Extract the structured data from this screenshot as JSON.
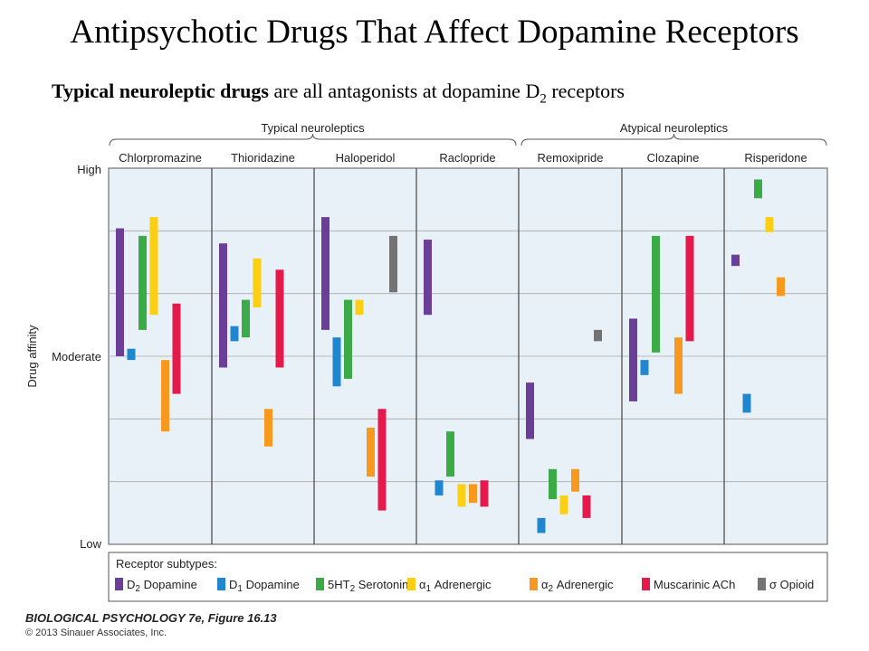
{
  "slide": {
    "title": "Antipsychotic Drugs That Affect Dopamine Receptors",
    "subtitle_bold": "Typical neuroleptic drugs",
    "subtitle_text": " are all antagonists at dopamine D",
    "subtitle_sub": "2",
    "subtitle_end": " receptors",
    "caption": "BIOLOGICAL PSYCHOLOGY 7e, Figure 16.13",
    "copyright": "© 2013 Sinauer Associates, Inc."
  },
  "chart_data": {
    "type": "range-bar",
    "ylabel": "Drug affinity",
    "y_ticks": [
      "High",
      "Moderate",
      "Low"
    ],
    "ylim": [
      0,
      1
    ],
    "groups": [
      {
        "label": "Typical neuroleptics",
        "drugs": [
          "Chlorpromazine",
          "Thioridazine",
          "Haloperidol",
          "Raclopride"
        ]
      },
      {
        "label": "Atypical neuroleptics",
        "drugs": [
          "Remoxipride",
          "Clozapine",
          "Risperidone"
        ]
      }
    ],
    "legend_title": "Receptor subtypes:",
    "receptors": [
      {
        "key": "D2",
        "pre": "D",
        "sub": "2",
        "post": " Dopamine",
        "color": "#6b3f97"
      },
      {
        "key": "D1",
        "pre": "D",
        "sub": "1",
        "post": " Dopamine",
        "color": "#1f86d0"
      },
      {
        "key": "5HT2",
        "pre": "5HT",
        "sub": "2",
        "post": " Serotonin",
        "color": "#3bab48"
      },
      {
        "key": "a1",
        "pre": "α",
        "sub": "1",
        "post": " Adrenergic",
        "color": "#fccf12"
      },
      {
        "key": "a2",
        "pre": "α",
        "sub": "2",
        "post": " Adrenergic",
        "color": "#f7991f"
      },
      {
        "key": "mACh",
        "pre": "Muscarinic ACh",
        "sub": "",
        "post": "",
        "color": "#e41a4c"
      },
      {
        "key": "sigma",
        "pre": "σ Opioid",
        "sub": "",
        "post": "",
        "color": "#737373"
      }
    ],
    "drugs": [
      {
        "name": "Chlorpromazine",
        "bars": [
          {
            "r": "D2",
            "lo": 0.5,
            "hi": 0.84
          },
          {
            "r": "D1",
            "lo": 0.49,
            "hi": 0.52
          },
          {
            "r": "5HT2",
            "lo": 0.57,
            "hi": 0.82
          },
          {
            "r": "a1",
            "lo": 0.61,
            "hi": 0.87
          },
          {
            "r": "a2",
            "lo": 0.3,
            "hi": 0.49
          },
          {
            "r": "mACh",
            "lo": 0.4,
            "hi": 0.64
          }
        ]
      },
      {
        "name": "Thioridazine",
        "bars": [
          {
            "r": "D2",
            "lo": 0.47,
            "hi": 0.8
          },
          {
            "r": "D1",
            "lo": 0.54,
            "hi": 0.58
          },
          {
            "r": "5HT2",
            "lo": 0.55,
            "hi": 0.65
          },
          {
            "r": "a1",
            "lo": 0.63,
            "hi": 0.76
          },
          {
            "r": "a2",
            "lo": 0.26,
            "hi": 0.36
          },
          {
            "r": "mACh",
            "lo": 0.47,
            "hi": 0.73
          }
        ]
      },
      {
        "name": "Haloperidol",
        "bars": [
          {
            "r": "D2",
            "lo": 0.57,
            "hi": 0.87
          },
          {
            "r": "D1",
            "lo": 0.42,
            "hi": 0.55
          },
          {
            "r": "5HT2",
            "lo": 0.44,
            "hi": 0.65
          },
          {
            "r": "a1",
            "lo": 0.61,
            "hi": 0.65
          },
          {
            "r": "a2",
            "lo": 0.18,
            "hi": 0.31
          },
          {
            "r": "mACh",
            "lo": 0.09,
            "hi": 0.36
          },
          {
            "r": "sigma",
            "lo": 0.67,
            "hi": 0.82
          }
        ]
      },
      {
        "name": "Raclopride",
        "bars": [
          {
            "r": "D2",
            "lo": 0.61,
            "hi": 0.81
          },
          {
            "r": "D1",
            "lo": 0.13,
            "hi": 0.17
          },
          {
            "r": "5HT2",
            "lo": 0.18,
            "hi": 0.3
          },
          {
            "r": "a1",
            "lo": 0.1,
            "hi": 0.16
          },
          {
            "r": "a2",
            "lo": 0.11,
            "hi": 0.16
          },
          {
            "r": "mACh",
            "lo": 0.1,
            "hi": 0.17
          }
        ]
      },
      {
        "name": "Remoxipride",
        "bars": [
          {
            "r": "D2",
            "lo": 0.28,
            "hi": 0.43
          },
          {
            "r": "D1",
            "lo": 0.03,
            "hi": 0.07
          },
          {
            "r": "5HT2",
            "lo": 0.12,
            "hi": 0.2
          },
          {
            "r": "a1",
            "lo": 0.08,
            "hi": 0.13
          },
          {
            "r": "a2",
            "lo": 0.14,
            "hi": 0.2
          },
          {
            "r": "mACh",
            "lo": 0.07,
            "hi": 0.13
          },
          {
            "r": "sigma",
            "lo": 0.54,
            "hi": 0.57
          }
        ]
      },
      {
        "name": "Clozapine",
        "bars": [
          {
            "r": "D2",
            "lo": 0.38,
            "hi": 0.6
          },
          {
            "r": "D1",
            "lo": 0.45,
            "hi": 0.49
          },
          {
            "r": "5HT2",
            "lo": 0.51,
            "hi": 0.82
          },
          {
            "r": "a2",
            "lo": 0.4,
            "hi": 0.55
          },
          {
            "r": "mACh",
            "lo": 0.54,
            "hi": 0.82
          }
        ]
      },
      {
        "name": "Risperidone",
        "bars": [
          {
            "r": "D2",
            "lo": 0.74,
            "hi": 0.77
          },
          {
            "r": "D1",
            "lo": 0.35,
            "hi": 0.4
          },
          {
            "r": "5HT2",
            "lo": 0.92,
            "hi": 0.97
          },
          {
            "r": "a1",
            "lo": 0.83,
            "hi": 0.87
          },
          {
            "r": "a2",
            "lo": 0.66,
            "hi": 0.71
          }
        ]
      }
    ]
  }
}
